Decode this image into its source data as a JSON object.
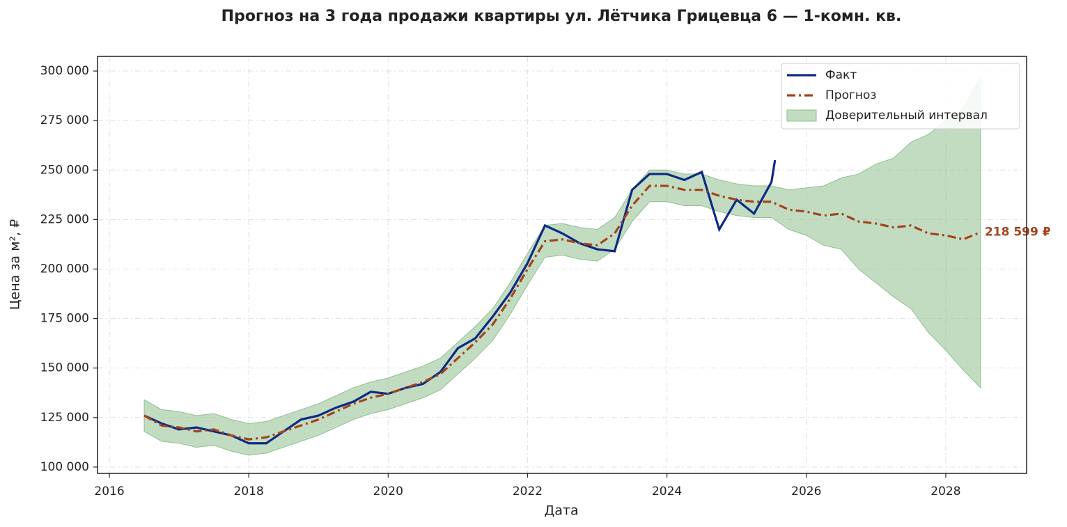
{
  "chart_data": {
    "type": "line",
    "title": "Прогноз на 3 года продажи квартиры  ул. Лётчика Грицевца 6 — 1-комн. кв.",
    "xlabel": "Дата",
    "ylabel": "Цена за м², ₽",
    "xlim": [
      2015.83,
      2029.16
    ],
    "ylim": [
      96800,
      307400
    ],
    "xticks": [
      2016,
      2018,
      2020,
      2022,
      2024,
      2026,
      2028
    ],
    "yticks": [
      {
        "value": 100000,
        "label": "100 000"
      },
      {
        "value": 125000,
        "label": "125 000"
      },
      {
        "value": 150000,
        "label": "150 000"
      },
      {
        "value": 175000,
        "label": "175 000"
      },
      {
        "value": 200000,
        "label": "200 000"
      },
      {
        "value": 225000,
        "label": "225 000"
      },
      {
        "value": 250000,
        "label": "250 000"
      },
      {
        "value": 275000,
        "label": "275 000"
      },
      {
        "value": 300000,
        "label": "300 000"
      }
    ],
    "grid": true,
    "legend": "upper right",
    "series": [
      {
        "name": "Факт",
        "color": "#0e2a82",
        "style": "solid",
        "x": [
          2016.5,
          2016.75,
          2017,
          2017.25,
          2017.5,
          2017.75,
          2018,
          2018.25,
          2018.5,
          2018.75,
          2019,
          2019.25,
          2019.5,
          2019.75,
          2020,
          2020.25,
          2020.5,
          2020.75,
          2021,
          2021.25,
          2021.5,
          2021.75,
          2022,
          2022.25,
          2022.5,
          2022.75,
          2023,
          2023.25,
          2023.5,
          2023.75,
          2024,
          2024.25,
          2024.5,
          2024.75,
          2025,
          2025.25,
          2025.5,
          2025.55
        ],
        "values": [
          126000,
          122000,
          119000,
          120000,
          118000,
          116000,
          112000,
          112000,
          118000,
          124000,
          126000,
          130000,
          133000,
          138000,
          137000,
          140000,
          142000,
          148000,
          160000,
          165000,
          176000,
          188000,
          203000,
          222000,
          218000,
          213000,
          210000,
          209000,
          240000,
          248000,
          248000,
          245000,
          249000,
          220000,
          235000,
          228000,
          244000,
          255000
        ]
      },
      {
        "name": "Прогноз",
        "color": "#a3441b",
        "style": "dashdot",
        "x": [
          2016.5,
          2016.75,
          2017,
          2017.25,
          2017.5,
          2017.75,
          2018,
          2018.25,
          2018.5,
          2018.75,
          2019,
          2019.25,
          2019.5,
          2019.75,
          2020,
          2020.25,
          2020.5,
          2020.75,
          2021,
          2021.25,
          2021.5,
          2021.75,
          2022,
          2022.25,
          2022.5,
          2022.75,
          2023,
          2023.25,
          2023.5,
          2023.75,
          2024,
          2024.25,
          2024.5,
          2024.75,
          2025,
          2025.25,
          2025.5,
          2025.75,
          2026,
          2026.25,
          2026.5,
          2026.75,
          2027,
          2027.25,
          2027.5,
          2027.75,
          2028,
          2028.25,
          2028.5
        ],
        "values": [
          126000,
          121000,
          120000,
          118000,
          119000,
          116000,
          114000,
          115000,
          118000,
          121000,
          124000,
          128000,
          132000,
          135000,
          137000,
          140000,
          143000,
          147000,
          155000,
          163000,
          172000,
          185000,
          200000,
          214000,
          215000,
          213000,
          212000,
          218000,
          232000,
          242000,
          242000,
          240000,
          240000,
          237000,
          235000,
          234000,
          234000,
          230000,
          229000,
          227000,
          228000,
          224000,
          223000,
          221000,
          222000,
          218000,
          217000,
          215000,
          218599
        ]
      }
    ],
    "band": {
      "name": "Доверительный интервал",
      "color": "#8fc08f",
      "x": [
        2016.5,
        2016.75,
        2017,
        2017.25,
        2017.5,
        2017.75,
        2018,
        2018.25,
        2018.5,
        2018.75,
        2019,
        2019.25,
        2019.5,
        2019.75,
        2020,
        2020.25,
        2020.5,
        2020.75,
        2021,
        2021.25,
        2021.5,
        2021.75,
        2022,
        2022.25,
        2022.5,
        2022.75,
        2023,
        2023.25,
        2023.5,
        2023.75,
        2024,
        2024.25,
        2024.5,
        2024.75,
        2025,
        2025.25,
        2025.5,
        2025.75,
        2026,
        2026.25,
        2026.5,
        2026.75,
        2027,
        2027.25,
        2027.5,
        2027.75,
        2028,
        2028.25,
        2028.5
      ],
      "lower": [
        118000,
        113000,
        112000,
        110000,
        111000,
        108000,
        106000,
        107000,
        110000,
        113000,
        116000,
        120000,
        124000,
        127000,
        129000,
        132000,
        135000,
        139000,
        147000,
        155000,
        164000,
        177000,
        192000,
        206000,
        207000,
        205000,
        204000,
        210000,
        224000,
        234000,
        234000,
        232000,
        232000,
        229000,
        227000,
        226000,
        226000,
        220000,
        217000,
        212000,
        210000,
        200000,
        193000,
        186000,
        180000,
        168000,
        159000,
        149000,
        140000
      ],
      "upper": [
        134000,
        129000,
        128000,
        126000,
        127000,
        124000,
        122000,
        123000,
        126000,
        129000,
        132000,
        136000,
        140000,
        143000,
        145000,
        148000,
        151000,
        155000,
        163000,
        171000,
        180000,
        193000,
        208000,
        222000,
        223000,
        221000,
        220000,
        226000,
        240000,
        250000,
        250000,
        248000,
        248000,
        245000,
        243000,
        242000,
        242000,
        240000,
        241000,
        242000,
        246000,
        248000,
        253000,
        256000,
        264000,
        268000,
        275000,
        281000,
        297000
      ]
    },
    "end_label": {
      "value": 218599,
      "label": "218 599 ₽"
    }
  }
}
